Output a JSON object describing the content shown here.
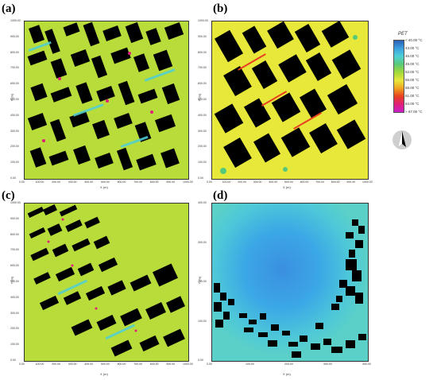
{
  "panels": [
    {
      "letter": "(a)",
      "x_label": "X (m)",
      "y_label": "Y (m)",
      "x_ticks": [
        "0.00",
        "100.00",
        "200.00",
        "300.00",
        "400.00",
        "500.00",
        "600.00",
        "700.00",
        "800.00",
        "900.00",
        "1000.00"
      ],
      "y_ticks": [
        "1000.00",
        "900.00",
        "800.00",
        "700.00",
        "600.00",
        "500.00",
        "400.00",
        "300.00",
        "200.00",
        "100.00",
        "0.00"
      ]
    },
    {
      "letter": "(b)",
      "x_label": "X (m)",
      "y_label": "Y (m)",
      "x_ticks": [
        "0.00",
        "100.00",
        "200.00",
        "300.00",
        "400.00",
        "500.00",
        "600.00",
        "700.00",
        "800.00",
        "900.00",
        "1000.00"
      ],
      "y_ticks": [
        "1000.00",
        "900.00",
        "800.00",
        "700.00",
        "600.00",
        "500.00",
        "400.00",
        "300.00",
        "200.00",
        "100.00",
        "0.00"
      ]
    },
    {
      "letter": "(c)",
      "x_label": "X (m)",
      "y_label": "Y (m)",
      "x_ticks": [
        "0.00",
        "100.00",
        "200.00",
        "300.00",
        "400.00",
        "500.00",
        "600.00",
        "700.00",
        "800.00",
        "900.00",
        "1000.00"
      ],
      "y_ticks": [
        "1000.00",
        "900.00",
        "800.00",
        "700.00",
        "600.00",
        "500.00",
        "400.00",
        "300.00",
        "200.00",
        "100.00",
        "0.00"
      ]
    },
    {
      "letter": "(d)",
      "x_label": "X (m)",
      "y_label": "Y (m)",
      "x_ticks": [
        "0.00",
        "100.00",
        "200.00",
        "300.00",
        "400.00"
      ],
      "y_ticks": [
        "400.00",
        "300.00",
        "200.00",
        "100.00",
        "0.00"
      ]
    }
  ],
  "legend": {
    "title": "PET",
    "entries": [
      {
        "label": "< 40.00 °C",
        "color": "#2b5fb4"
      },
      {
        "label": "43.00 °C",
        "color": "#3b9fe0"
      },
      {
        "label": "46.00 °C",
        "color": "#4fd0d6"
      },
      {
        "label": "49.00 °C",
        "color": "#58c97a"
      },
      {
        "label": "52.00 °C",
        "color": "#9fd83a"
      },
      {
        "label": "55.00 °C",
        "color": "#e8e83a"
      },
      {
        "label": "58.00 °C",
        "color": "#f0a020"
      },
      {
        "label": "61.00 °C",
        "color": "#e84020"
      },
      {
        "label": "64.00 °C",
        "color": "#e0207a"
      },
      {
        "label": "> 67.00 °C",
        "color": "#c81ec8"
      }
    ]
  },
  "north_arrow_icon": "north-arrow-icon"
}
